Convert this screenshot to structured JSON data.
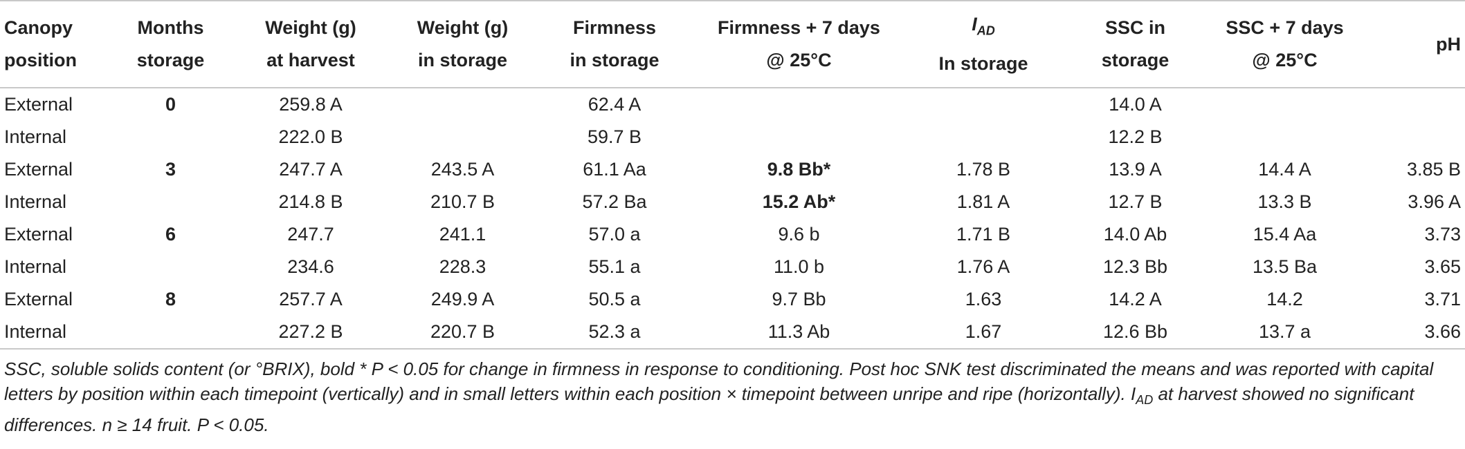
{
  "table": {
    "header": [
      {
        "lines": [
          "Canopy",
          "position"
        ]
      },
      {
        "lines": [
          "Months",
          "storage"
        ]
      },
      {
        "lines": [
          "Weight (g)",
          "at harvest"
        ]
      },
      {
        "lines": [
          "Weight (g)",
          "in storage"
        ]
      },
      {
        "lines": [
          "Firmness",
          "in storage"
        ]
      },
      {
        "lines": [
          "Firmness + 7 days",
          "@ 25°C"
        ]
      },
      {
        "symbol": "I",
        "subscript": "AD",
        "lines": [
          "In storage"
        ]
      },
      {
        "lines": [
          "SSC in",
          "storage"
        ]
      },
      {
        "lines": [
          "SSC + 7 days",
          "@ 25°C"
        ]
      },
      {
        "lines": [
          "pH"
        ]
      }
    ],
    "rows": [
      [
        "External",
        {
          "text": "0",
          "bold": true
        },
        "259.8 A",
        null,
        "62.4 A",
        null,
        null,
        "14.0 A",
        null,
        null
      ],
      [
        "Internal",
        null,
        "222.0 B",
        null,
        "59.7 B",
        null,
        null,
        "12.2 B",
        null,
        null
      ],
      [
        "External",
        {
          "text": "3",
          "bold": true
        },
        "247.7 A",
        "243.5 A",
        "61.1 Aa",
        {
          "text": "9.8 Bb*",
          "bold": true
        },
        "1.78 B",
        "13.9 A",
        "14.4 A",
        "3.85 B"
      ],
      [
        "Internal",
        null,
        "214.8 B",
        "210.7 B",
        "57.2 Ba",
        {
          "text": "15.2 Ab*",
          "bold": true
        },
        "1.81 A",
        "12.7 B",
        "13.3 B",
        "3.96 A"
      ],
      [
        "External",
        {
          "text": "6",
          "bold": true
        },
        "247.7",
        "241.1",
        "57.0 a",
        "9.6 b",
        "1.71 B",
        "14.0 Ab",
        "15.4 Aa",
        "3.73"
      ],
      [
        "Internal",
        null,
        "234.6",
        "228.3",
        "55.1 a",
        "11.0 b",
        "1.76 A",
        "12.3 Bb",
        "13.5 Ba",
        "3.65"
      ],
      [
        "External",
        {
          "text": "8",
          "bold": true
        },
        "257.7 A",
        "249.9 A",
        "50.5 a",
        "9.7 Bb",
        "1.63",
        "14.2 A",
        "14.2",
        "3.71"
      ],
      [
        "Internal",
        null,
        "227.2 B",
        "220.7 B",
        "52.3 a",
        "11.3 Ab",
        "1.67",
        "12.6 Bb",
        "13.7 a",
        "3.66"
      ]
    ],
    "footnote": {
      "before": "SSC, soluble solids content (or °BRIX), bold * P < 0.05 for change in firmness in response to conditioning. Post hoc SNK test discriminated the means and was reported with capital letters by position within each timepoint (vertically) and in small letters within each position × timepoint between unripe and ripe (horizontally). I",
      "subscript": "AD",
      "after": "at harvest showed no significant differences. n ≥ 14 fruit. P < 0.05."
    }
  }
}
